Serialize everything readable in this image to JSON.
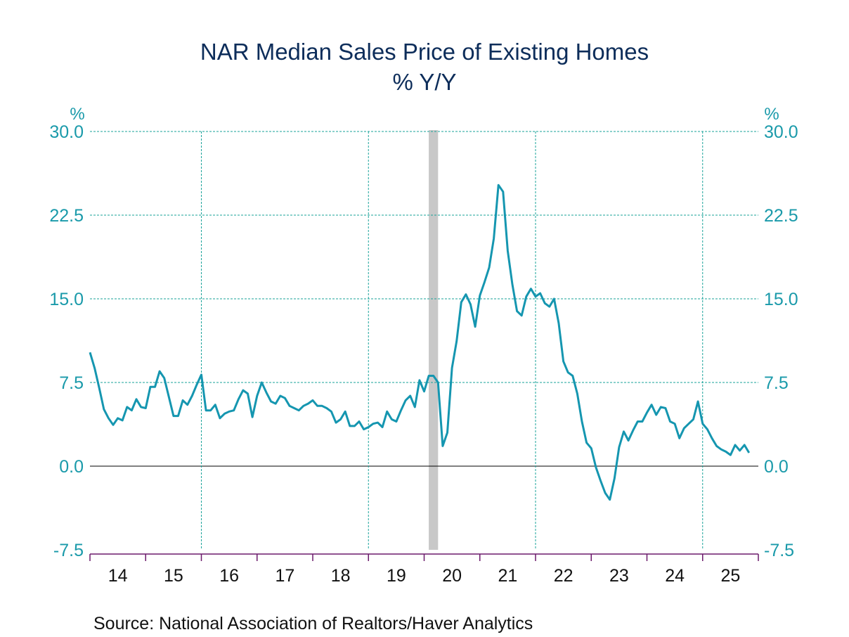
{
  "chart_data": {
    "type": "line",
    "title": "NAR Median Sales Price of Existing Homes",
    "subtitle": "% Y/Y",
    "source": "Source:  National Association of Realtors/Haver Analytics",
    "ylabel_left": "%",
    "ylabel_right": "%",
    "ylim": [
      -7.5,
      30.0
    ],
    "yticks": [
      "30.0",
      "22.5",
      "15.0",
      "7.5",
      "0.0",
      "-7.5"
    ],
    "ytick_values": [
      30.0,
      22.5,
      15.0,
      7.5,
      0.0,
      -7.5
    ],
    "xlim": [
      2014.0,
      2026.0
    ],
    "xtick_labels": [
      "14",
      "15",
      "16",
      "17",
      "18",
      "19",
      "20",
      "21",
      "22",
      "23",
      "24",
      "25"
    ],
    "xtick_years": [
      2014,
      2015,
      2016,
      2017,
      2018,
      2019,
      2020,
      2021,
      2022,
      2023,
      2024,
      2025
    ],
    "vertical_gridlines_years": [
      2016,
      2019,
      2022,
      2025
    ],
    "grid": true,
    "zero_line": true,
    "recession_shading": [
      {
        "start": 2020.083,
        "end": 2020.25
      }
    ],
    "colors": {
      "line": "#1596b0",
      "grid": "#1aa39a",
      "axis": "#6b1a6b",
      "recession": "#c8c8c8",
      "ytick": "#1a9aaa",
      "title": "#0d2d5a"
    },
    "series": [
      {
        "name": "NAR Median Sales Price % Y/Y",
        "start": "2014-01",
        "frequency": "monthly",
        "values": [
          10.2,
          8.8,
          7.0,
          5.1,
          4.3,
          3.7,
          4.3,
          4.1,
          5.3,
          5.0,
          6.0,
          5.3,
          5.2,
          7.1,
          7.1,
          8.5,
          7.9,
          6.2,
          4.5,
          4.5,
          5.9,
          5.5,
          6.3,
          7.3,
          8.2,
          5.0,
          5.0,
          5.5,
          4.3,
          4.7,
          4.9,
          5.0,
          6.0,
          6.8,
          6.5,
          4.4,
          6.3,
          7.5,
          6.6,
          5.8,
          5.6,
          6.3,
          6.1,
          5.4,
          5.2,
          5.0,
          5.4,
          5.6,
          5.9,
          5.4,
          5.4,
          5.2,
          4.9,
          3.9,
          4.2,
          4.9,
          3.6,
          3.6,
          4.0,
          3.3,
          3.5,
          3.8,
          3.9,
          3.5,
          4.9,
          4.2,
          4.0,
          5.0,
          5.9,
          6.3,
          5.3,
          7.7,
          6.7,
          8.1,
          8.1,
          7.5,
          1.8,
          3.0,
          8.8,
          11.2,
          14.7,
          15.4,
          14.5,
          12.5,
          15.3,
          16.5,
          17.8,
          20.4,
          25.2,
          24.6,
          19.3,
          16.3,
          13.9,
          13.5,
          15.2,
          15.9,
          15.2,
          15.5,
          14.6,
          14.3,
          15.0,
          12.8,
          9.4,
          8.4,
          8.1,
          6.5,
          4.0,
          2.1,
          1.6,
          -0.1,
          -1.3,
          -2.4,
          -3.0,
          -1.1,
          1.7,
          3.1,
          2.3,
          3.2,
          4.0,
          4.0,
          4.8,
          5.5,
          4.6,
          5.3,
          5.2,
          4.0,
          3.8,
          2.5,
          3.4,
          3.8,
          4.2,
          5.8,
          3.8,
          3.3,
          2.5,
          1.8,
          1.5,
          1.3,
          1.0,
          1.9,
          1.4,
          1.9,
          1.2
        ]
      }
    ]
  }
}
